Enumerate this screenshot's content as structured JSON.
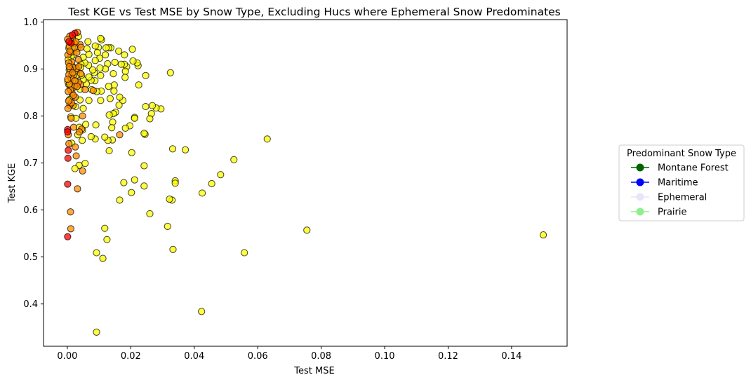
{
  "chart_data": {
    "type": "scatter",
    "title": "Test KGE vs Test MSE by Snow Type, Excluding Hucs where Ephemeral Snow Predominates",
    "xlabel": "Test MSE",
    "ylabel": "Test KGE",
    "xlim": [
      -0.0075,
      0.1575
    ],
    "ylim": [
      0.31,
      1.005
    ],
    "xticks": [
      0.0,
      0.02,
      0.04,
      0.06,
      0.08,
      0.1,
      0.12,
      0.14
    ],
    "xtick_labels": [
      "0.00",
      "0.02",
      "0.04",
      "0.06",
      "0.08",
      "0.10",
      "0.12",
      "0.14"
    ],
    "yticks": [
      0.4,
      0.5,
      0.6,
      0.7,
      0.8,
      0.9,
      1.0
    ],
    "ytick_labels": [
      "0.4",
      "0.5",
      "0.6",
      "0.7",
      "0.8",
      "0.9",
      "1.0"
    ],
    "grid": false,
    "legend": {
      "title": "Predominant Snow Type",
      "placement": "outside right",
      "entries": [
        {
          "label": "Montane Forest",
          "color": "#006400"
        },
        {
          "label": "Maritime",
          "color": "#0000ff"
        },
        {
          "label": "Ephemeral",
          "color": "#e6e6fa"
        },
        {
          "label": "Prairie",
          "color": "#90ee90"
        }
      ]
    },
    "point_style": {
      "edge_color": "#000000",
      "alpha": 0.75
    },
    "series": [
      {
        "color": "#ffff00",
        "points": [
          [
            0.15,
            0.547
          ],
          [
            0.0755,
            0.557
          ],
          [
            0.063,
            0.751
          ],
          [
            0.0558,
            0.509
          ],
          [
            0.0525,
            0.707
          ],
          [
            0.0483,
            0.675
          ],
          [
            0.0455,
            0.656
          ],
          [
            0.0425,
            0.636
          ],
          [
            0.0423,
            0.384
          ],
          [
            0.0372,
            0.728
          ],
          [
            0.034,
            0.662
          ],
          [
            0.034,
            0.657
          ],
          [
            0.0332,
            0.73
          ],
          [
            0.0333,
            0.516
          ],
          [
            0.033,
            0.621
          ],
          [
            0.0322,
            0.623
          ],
          [
            0.0316,
            0.565
          ],
          [
            0.0325,
            0.892
          ],
          [
            0.0295,
            0.815
          ],
          [
            0.028,
            0.817
          ],
          [
            0.0268,
            0.822
          ],
          [
            0.0265,
            0.805
          ],
          [
            0.026,
            0.794
          ],
          [
            0.026,
            0.592
          ],
          [
            0.0247,
            0.82
          ],
          [
            0.0247,
            0.886
          ],
          [
            0.0245,
            0.761
          ],
          [
            0.0242,
            0.763
          ],
          [
            0.0242,
            0.694
          ],
          [
            0.0242,
            0.651
          ],
          [
            0.0225,
            0.866
          ],
          [
            0.0223,
            0.907
          ],
          [
            0.022,
            0.913
          ],
          [
            0.0212,
            0.797
          ],
          [
            0.0212,
            0.795
          ],
          [
            0.0212,
            0.664
          ],
          [
            0.0205,
            0.942
          ],
          [
            0.0207,
            0.917
          ],
          [
            0.0203,
            0.722
          ],
          [
            0.0202,
            0.637
          ],
          [
            0.0197,
            0.779
          ],
          [
            0.0187,
            0.905
          ],
          [
            0.0183,
            0.895
          ],
          [
            0.018,
            0.93
          ],
          [
            0.018,
            0.91
          ],
          [
            0.0182,
            0.882
          ],
          [
            0.0175,
            0.833
          ],
          [
            0.0183,
            0.774
          ],
          [
            0.0178,
            0.658
          ],
          [
            0.0162,
            0.938
          ],
          [
            0.017,
            0.91
          ],
          [
            0.0165,
            0.84
          ],
          [
            0.0163,
            0.823
          ],
          [
            0.0165,
            0.621
          ],
          [
            0.015,
            0.914
          ],
          [
            0.0145,
            0.89
          ],
          [
            0.0148,
            0.866
          ],
          [
            0.0152,
            0.808
          ],
          [
            0.0145,
            0.805
          ],
          [
            0.0143,
            0.787
          ],
          [
            0.014,
            0.775
          ],
          [
            0.0142,
            0.749
          ],
          [
            0.0137,
            0.945
          ],
          [
            0.013,
            0.945
          ],
          [
            0.0127,
            0.911
          ],
          [
            0.013,
            0.863
          ],
          [
            0.0135,
            0.837
          ],
          [
            0.0132,
            0.802
          ],
          [
            0.0132,
            0.726
          ],
          [
            0.0128,
            0.748
          ],
          [
            0.0125,
            0.537
          ],
          [
            0.0122,
            0.945
          ],
          [
            0.012,
            0.9
          ],
          [
            0.012,
            0.93
          ],
          [
            0.0118,
            0.755
          ],
          [
            0.0118,
            0.561
          ],
          [
            0.0112,
            0.497
          ],
          [
            0.0108,
            0.962
          ],
          [
            0.0105,
            0.965
          ],
          [
            0.0107,
            0.853
          ],
          [
            0.0105,
            0.833
          ],
          [
            0.0103,
            0.902
          ],
          [
            0.0102,
            0.923
          ],
          [
            0.0098,
            0.946
          ],
          [
            0.0095,
            0.935
          ],
          [
            0.0093,
            0.852
          ],
          [
            0.0092,
            0.509
          ],
          [
            0.0088,
            0.949
          ],
          [
            0.0088,
            0.918
          ],
          [
            0.0087,
            0.875
          ],
          [
            0.009,
            0.781
          ],
          [
            0.0088,
            0.751
          ],
          [
            0.0085,
            0.892
          ],
          [
            0.008,
            0.898
          ],
          [
            0.0077,
            0.856
          ],
          [
            0.0075,
            0.876
          ],
          [
            0.0075,
            0.756
          ],
          [
            0.0068,
            0.931
          ],
          [
            0.0067,
            0.908
          ],
          [
            0.0068,
            0.883
          ],
          [
            0.0068,
            0.833
          ],
          [
            0.0065,
            0.958
          ],
          [
            0.006,
            0.868
          ],
          [
            0.0058,
            0.782
          ],
          [
            0.0056,
            0.699
          ],
          [
            0.0055,
            0.913
          ],
          [
            0.005,
            0.925
          ],
          [
            0.005,
            0.877
          ],
          [
            0.005,
            0.816
          ],
          [
            0.0048,
            0.77
          ],
          [
            0.0047,
            0.748
          ],
          [
            0.0045,
            0.887
          ],
          [
            0.0043,
            0.91
          ],
          [
            0.004,
            0.857
          ],
          [
            0.004,
            0.834
          ],
          [
            0.0038,
            0.776
          ],
          [
            0.0037,
            0.695
          ],
          [
            0.0035,
            0.969
          ],
          [
            0.0033,
            0.944
          ],
          [
            0.0033,
            0.76
          ],
          [
            0.003,
            0.898
          ],
          [
            0.0029,
            0.887
          ],
          [
            0.0028,
            0.873
          ],
          [
            0.0027,
            0.795
          ],
          [
            0.0026,
            0.82
          ],
          [
            0.0024,
            0.688
          ],
          [
            0.0022,
            0.955
          ],
          [
            0.002,
            0.931
          ],
          [
            0.0018,
            0.86
          ],
          [
            0.0017,
            0.905
          ],
          [
            0.0016,
            0.947
          ],
          [
            0.0014,
            0.838
          ],
          [
            0.0013,
            0.888
          ],
          [
            0.0012,
            0.926
          ],
          [
            0.0011,
            0.798
          ],
          [
            0.001,
            0.864
          ],
          [
            0.0009,
            0.91
          ],
          [
            0.0008,
            0.96
          ],
          [
            0.0007,
            0.835
          ],
          [
            0.0006,
            0.898
          ],
          [
            0.0005,
            0.944
          ],
          [
            0.0004,
            0.867
          ],
          [
            0.0003,
            0.92
          ],
          [
            0.0002,
            0.873
          ],
          [
            0.0014,
            0.742
          ],
          [
            0.0092,
            0.34
          ],
          [
            0.0147,
            0.853
          ],
          [
            0.0105,
            0.886
          ],
          [
            0.0062,
            0.943
          ],
          [
            0.0042,
            0.903
          ]
        ]
      },
      {
        "color": "#ff8c00",
        "points": [
          [
            0.0165,
            0.76
          ],
          [
            0.0082,
            0.854
          ],
          [
            0.0056,
            0.856
          ],
          [
            0.0048,
            0.8
          ],
          [
            0.0048,
            0.683
          ],
          [
            0.0045,
            0.772
          ],
          [
            0.0042,
            0.867
          ],
          [
            0.0042,
            0.89
          ],
          [
            0.0038,
            0.766
          ],
          [
            0.004,
            0.952
          ],
          [
            0.0035,
            0.872
          ],
          [
            0.0035,
            0.92
          ],
          [
            0.0032,
            0.978
          ],
          [
            0.0032,
            0.645
          ],
          [
            0.003,
            0.935
          ],
          [
            0.0028,
            0.901
          ],
          [
            0.0028,
            0.715
          ],
          [
            0.0025,
            0.84
          ],
          [
            0.0025,
            0.734
          ],
          [
            0.0022,
            0.864
          ],
          [
            0.0022,
            0.955
          ],
          [
            0.002,
            0.887
          ],
          [
            0.002,
            0.776
          ],
          [
            0.0018,
            0.903
          ],
          [
            0.0018,
            0.822
          ],
          [
            0.0016,
            0.965
          ],
          [
            0.0015,
            0.849
          ],
          [
            0.0014,
            0.915
          ],
          [
            0.0012,
            0.88
          ],
          [
            0.0012,
            0.795
          ],
          [
            0.001,
            0.935
          ],
          [
            0.001,
            0.856
          ],
          [
            0.0009,
            0.9
          ],
          [
            0.0008,
            0.97
          ],
          [
            0.0008,
            0.823
          ],
          [
            0.0007,
            0.868
          ],
          [
            0.0006,
            0.948
          ],
          [
            0.0005,
            0.888
          ],
          [
            0.0005,
            0.741
          ],
          [
            0.0004,
            0.913
          ],
          [
            0.0003,
            0.852
          ],
          [
            0.0003,
            0.76
          ],
          [
            0.0002,
            0.93
          ],
          [
            0.0002,
            0.816
          ],
          [
            0.0001,
            0.878
          ],
          [
            0.0001,
            0.963
          ],
          [
            0.001,
            0.596
          ],
          [
            0.0011,
            0.56
          ],
          [
            0.0022,
            0.946
          ],
          [
            0.0027,
            0.958
          ],
          [
            0.0036,
            0.905
          ],
          [
            0.0043,
            0.946
          ],
          [
            0.0019,
            0.844
          ],
          [
            0.0013,
            0.828
          ],
          [
            0.0008,
            0.938
          ],
          [
            0.0031,
            0.863
          ],
          [
            0.0024,
            0.875
          ],
          [
            0.0017,
            0.892
          ],
          [
            0.0006,
            0.905
          ],
          [
            0.0004,
            0.832
          ]
        ]
      },
      {
        "color": "#ff0000",
        "points": [
          [
            0.0024,
            0.976
          ],
          [
            0.0016,
            0.972
          ],
          [
            0.0001,
            0.771
          ],
          [
            0.0001,
            0.766
          ],
          [
            0.0003,
            0.727
          ],
          [
            0.0002,
            0.71
          ],
          [
            0.0001,
            0.655
          ],
          [
            0.0001,
            0.543
          ],
          [
            0.0012,
            0.955
          ],
          [
            0.0005,
            0.958
          ]
        ]
      }
    ]
  }
}
